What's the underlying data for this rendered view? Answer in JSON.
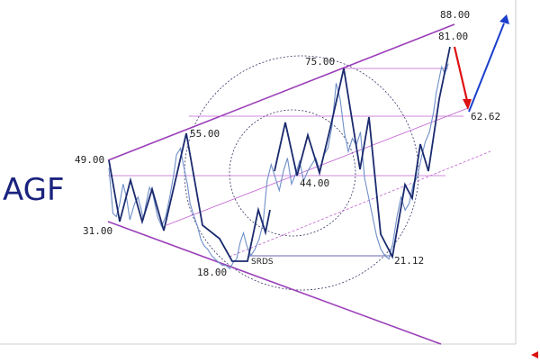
{
  "ticker": "AGF",
  "chart_data": {
    "type": "line",
    "title": "AGF",
    "xlabel": "",
    "ylabel": "",
    "x_ticks": [
      "",
      "",
      "",
      "",
      "",
      "",
      "",
      "",
      "",
      "",
      "",
      "",
      "",
      "",
      "",
      "",
      "",
      "",
      ""
    ],
    "y_ticks": [
      "",
      "",
      "",
      "",
      "",
      "",
      "",
      "",
      "",
      "",
      "",
      "",
      "",
      "",
      "",
      "",
      "",
      ""
    ],
    "price_labels": [
      {
        "text": "88.00",
        "value": 88
      },
      {
        "text": "81.00",
        "value": 81
      },
      {
        "text": "75.00",
        "value": 75
      },
      {
        "text": "62.62",
        "value": 62.62
      },
      {
        "text": "55.00",
        "value": 55
      },
      {
        "text": "49.00",
        "value": 49
      },
      {
        "text": "44.00",
        "value": 44
      },
      {
        "text": "31.00",
        "value": 31
      },
      {
        "text": "21.12",
        "value": 21.12
      },
      {
        "text": "18.00",
        "value": 18
      }
    ],
    "small_label": "SRDS",
    "series": [
      {
        "x": [
          0,
          3,
          6,
          11,
          16,
          21,
          26,
          31,
          38,
          43,
          48,
          51,
          55,
          60,
          65,
          72,
          78,
          84,
          90,
          96,
          100,
          106,
          110,
          116,
          120,
          126,
          131,
          136,
          141,
          146,
          152,
          157,
          162,
          168,
          173,
          179,
          184,
          189,
          194,
          199,
          204,
          210,
          216,
          222,
          228,
          234,
          240,
          246,
          252,
          258,
          264,
          270,
          276,
          282,
          288,
          294,
          300,
          306,
          312,
          318,
          324,
          330,
          336,
          342,
          348,
          354,
          360,
          366,
          372,
          378,
          384,
          390,
          396,
          402,
          408,
          414,
          420,
          426,
          432,
          438,
          444,
          450,
          456,
          462,
          468,
          474,
          480,
          484,
          488,
          492,
          497,
          502
        ],
        "values": [
          49,
          42,
          35,
          34,
          38,
          44,
          40,
          33,
          38,
          40,
          36,
          33,
          38,
          43,
          41,
          34,
          31,
          34,
          40,
          47,
          53,
          55,
          50,
          44,
          38,
          34,
          31,
          27,
          25,
          24,
          22,
          21,
          20,
          19,
          19,
          18,
          20,
          21,
          26,
          29,
          25,
          22,
          24,
          27,
          32,
          45,
          50,
          46,
          42,
          48,
          52,
          44,
          47,
          51,
          45,
          48,
          50,
          52,
          48,
          53,
          55,
          62,
          75,
          70,
          60,
          54,
          58,
          56,
          60,
          46,
          40,
          34,
          28,
          24,
          22,
          21,
          26,
          34,
          40,
          36,
          38,
          44,
          46,
          52,
          57,
          60,
          66,
          72,
          76,
          80,
          78,
          81
        ]
      }
    ],
    "xlim": [
      0,
      502
    ],
    "ylim": [
      12,
      95
    ],
    "grid": false
  }
}
